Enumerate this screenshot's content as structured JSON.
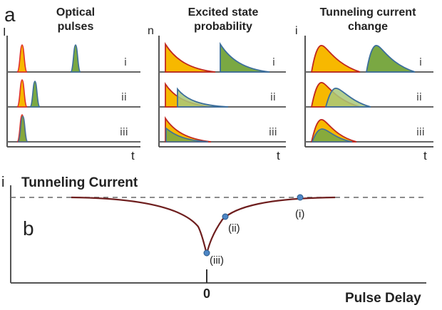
{
  "panel_a": {
    "letter": "a",
    "headers": [
      [
        "Optical",
        "pulses"
      ],
      [
        "Excited state",
        "probability"
      ],
      [
        "Tunneling current",
        "change"
      ]
    ],
    "y_axis_labels": [
      "I",
      "n",
      "i"
    ],
    "x_axis_label": "t",
    "row_labels": [
      "i",
      "ii",
      "iii"
    ]
  },
  "panel_b": {
    "letter": "b",
    "title": "Tunneling Current",
    "y_axis_label": "i",
    "x_axis_label": "Pulse Delay",
    "zero_tick_label": "0",
    "points": [
      {
        "label": "(iii)"
      },
      {
        "label": "(ii)"
      },
      {
        "label": "(i)"
      }
    ]
  },
  "colors": {
    "first_pulse": "#e0302a",
    "second_pulse": "#3c6e9c",
    "fill_first": "#f7b800",
    "fill_second": "#7aa843",
    "curve": "#6e1e1e",
    "dot": "#4d86c5"
  }
}
